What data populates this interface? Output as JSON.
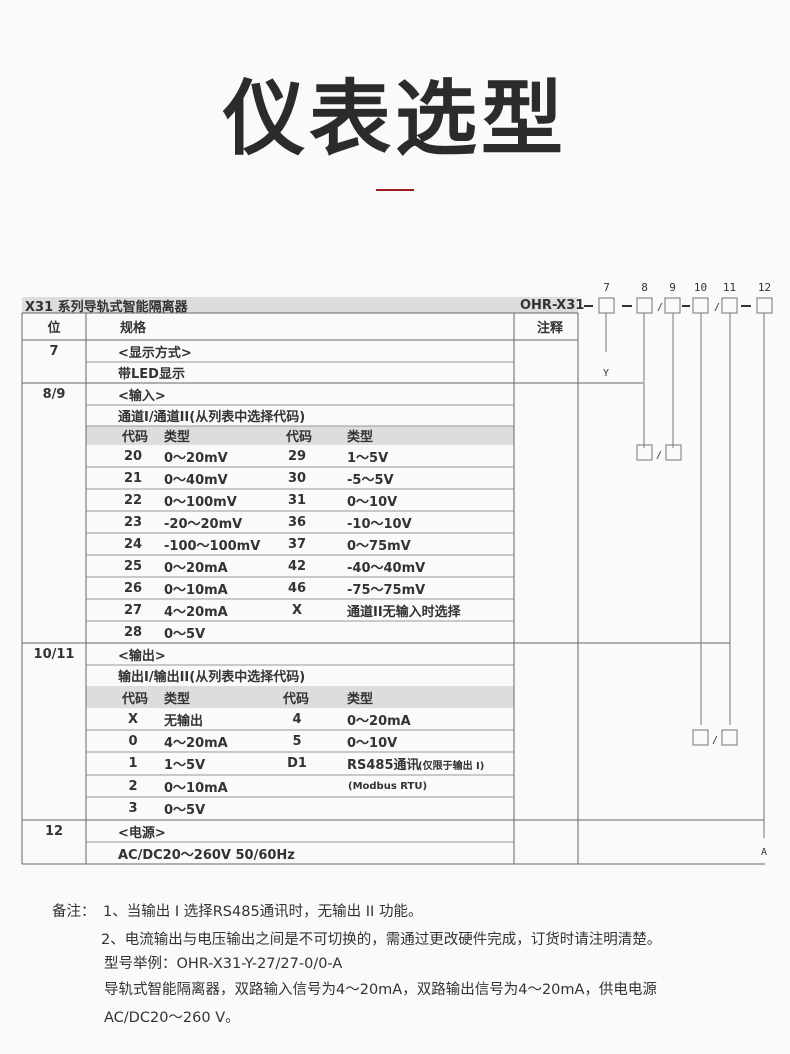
{
  "title": "仪表选型",
  "accent_color": "#9b1c1c",
  "table": {
    "header": {
      "series": "X31 系列导轨式智能隔离器",
      "model": "OHR-X31"
    },
    "columns": {
      "pos": "位",
      "spec": "规格",
      "note": "注释"
    },
    "display": {
      "pos": "7",
      "heading": "<显示方式>",
      "option": "带LED显示",
      "code": "Y"
    },
    "input": {
      "pos": "8/9",
      "heading": "<输入>",
      "desc": "通道I/通道II(从列表中选择代码)",
      "col_code": "代码",
      "col_type": "类型",
      "rows": [
        [
          "20",
          "0～20mV",
          "29",
          "1～5V"
        ],
        [
          "21",
          "0～40mV",
          "30",
          "-5～5V"
        ],
        [
          "22",
          "0～100mV",
          "31",
          "0～10V"
        ],
        [
          "23",
          "-20～20mV",
          "36",
          "-10～10V"
        ],
        [
          "24",
          "-100～100mV",
          "37",
          "0～75mV"
        ],
        [
          "25",
          "0～20mA",
          "42",
          "-40～40mV"
        ],
        [
          "26",
          "0～10mA",
          "46",
          "-75～75mV"
        ],
        [
          "27",
          "4～20mA",
          "X",
          "通道II无输入时选择"
        ],
        [
          "28",
          "0～5V",
          "",
          ""
        ]
      ]
    },
    "output": {
      "pos": "10/11",
      "heading": "<输出>",
      "desc": "输出I/输出II(从列表中选择代码)",
      "col_code": "代码",
      "col_type": "类型",
      "rows": [
        [
          "X",
          "无输出",
          "4",
          "0～20mA"
        ],
        [
          "0",
          "4～20mA",
          "5",
          "0～10V"
        ],
        [
          "1",
          "1～5V",
          "D1",
          "RS485通讯"
        ],
        [
          "2",
          "0～10mA",
          "",
          ""
        ],
        [
          "3",
          "0～5V",
          "",
          ""
        ]
      ],
      "d1_note": "(仅限于输出 I)",
      "modbus": "(Modbus  RTU)"
    },
    "power": {
      "pos": "12",
      "heading": "<电源>",
      "option": "AC/DC20～260V  50/60Hz",
      "code": "A"
    }
  },
  "diagram": {
    "positions": [
      "7",
      "8",
      "9",
      "10",
      "11",
      "12"
    ],
    "slash": "/"
  },
  "notes": {
    "label": "备注：",
    "n1": "1、当输出 I 选择RS485通讯时，无输出 II 功能。",
    "n2": "2、电流输出与电压输出之间是不可切换的，需通过更改硬件完成，订货时请注明清楚。",
    "example": "型号举例：OHR-X31-Y-27/27-0/0-A",
    "desc1": "导轨式智能隔离器，双路输入信号为4～20mA，双路输出信号为4～20mA，供电电源",
    "desc2": "AC/DC20～260 V。"
  }
}
